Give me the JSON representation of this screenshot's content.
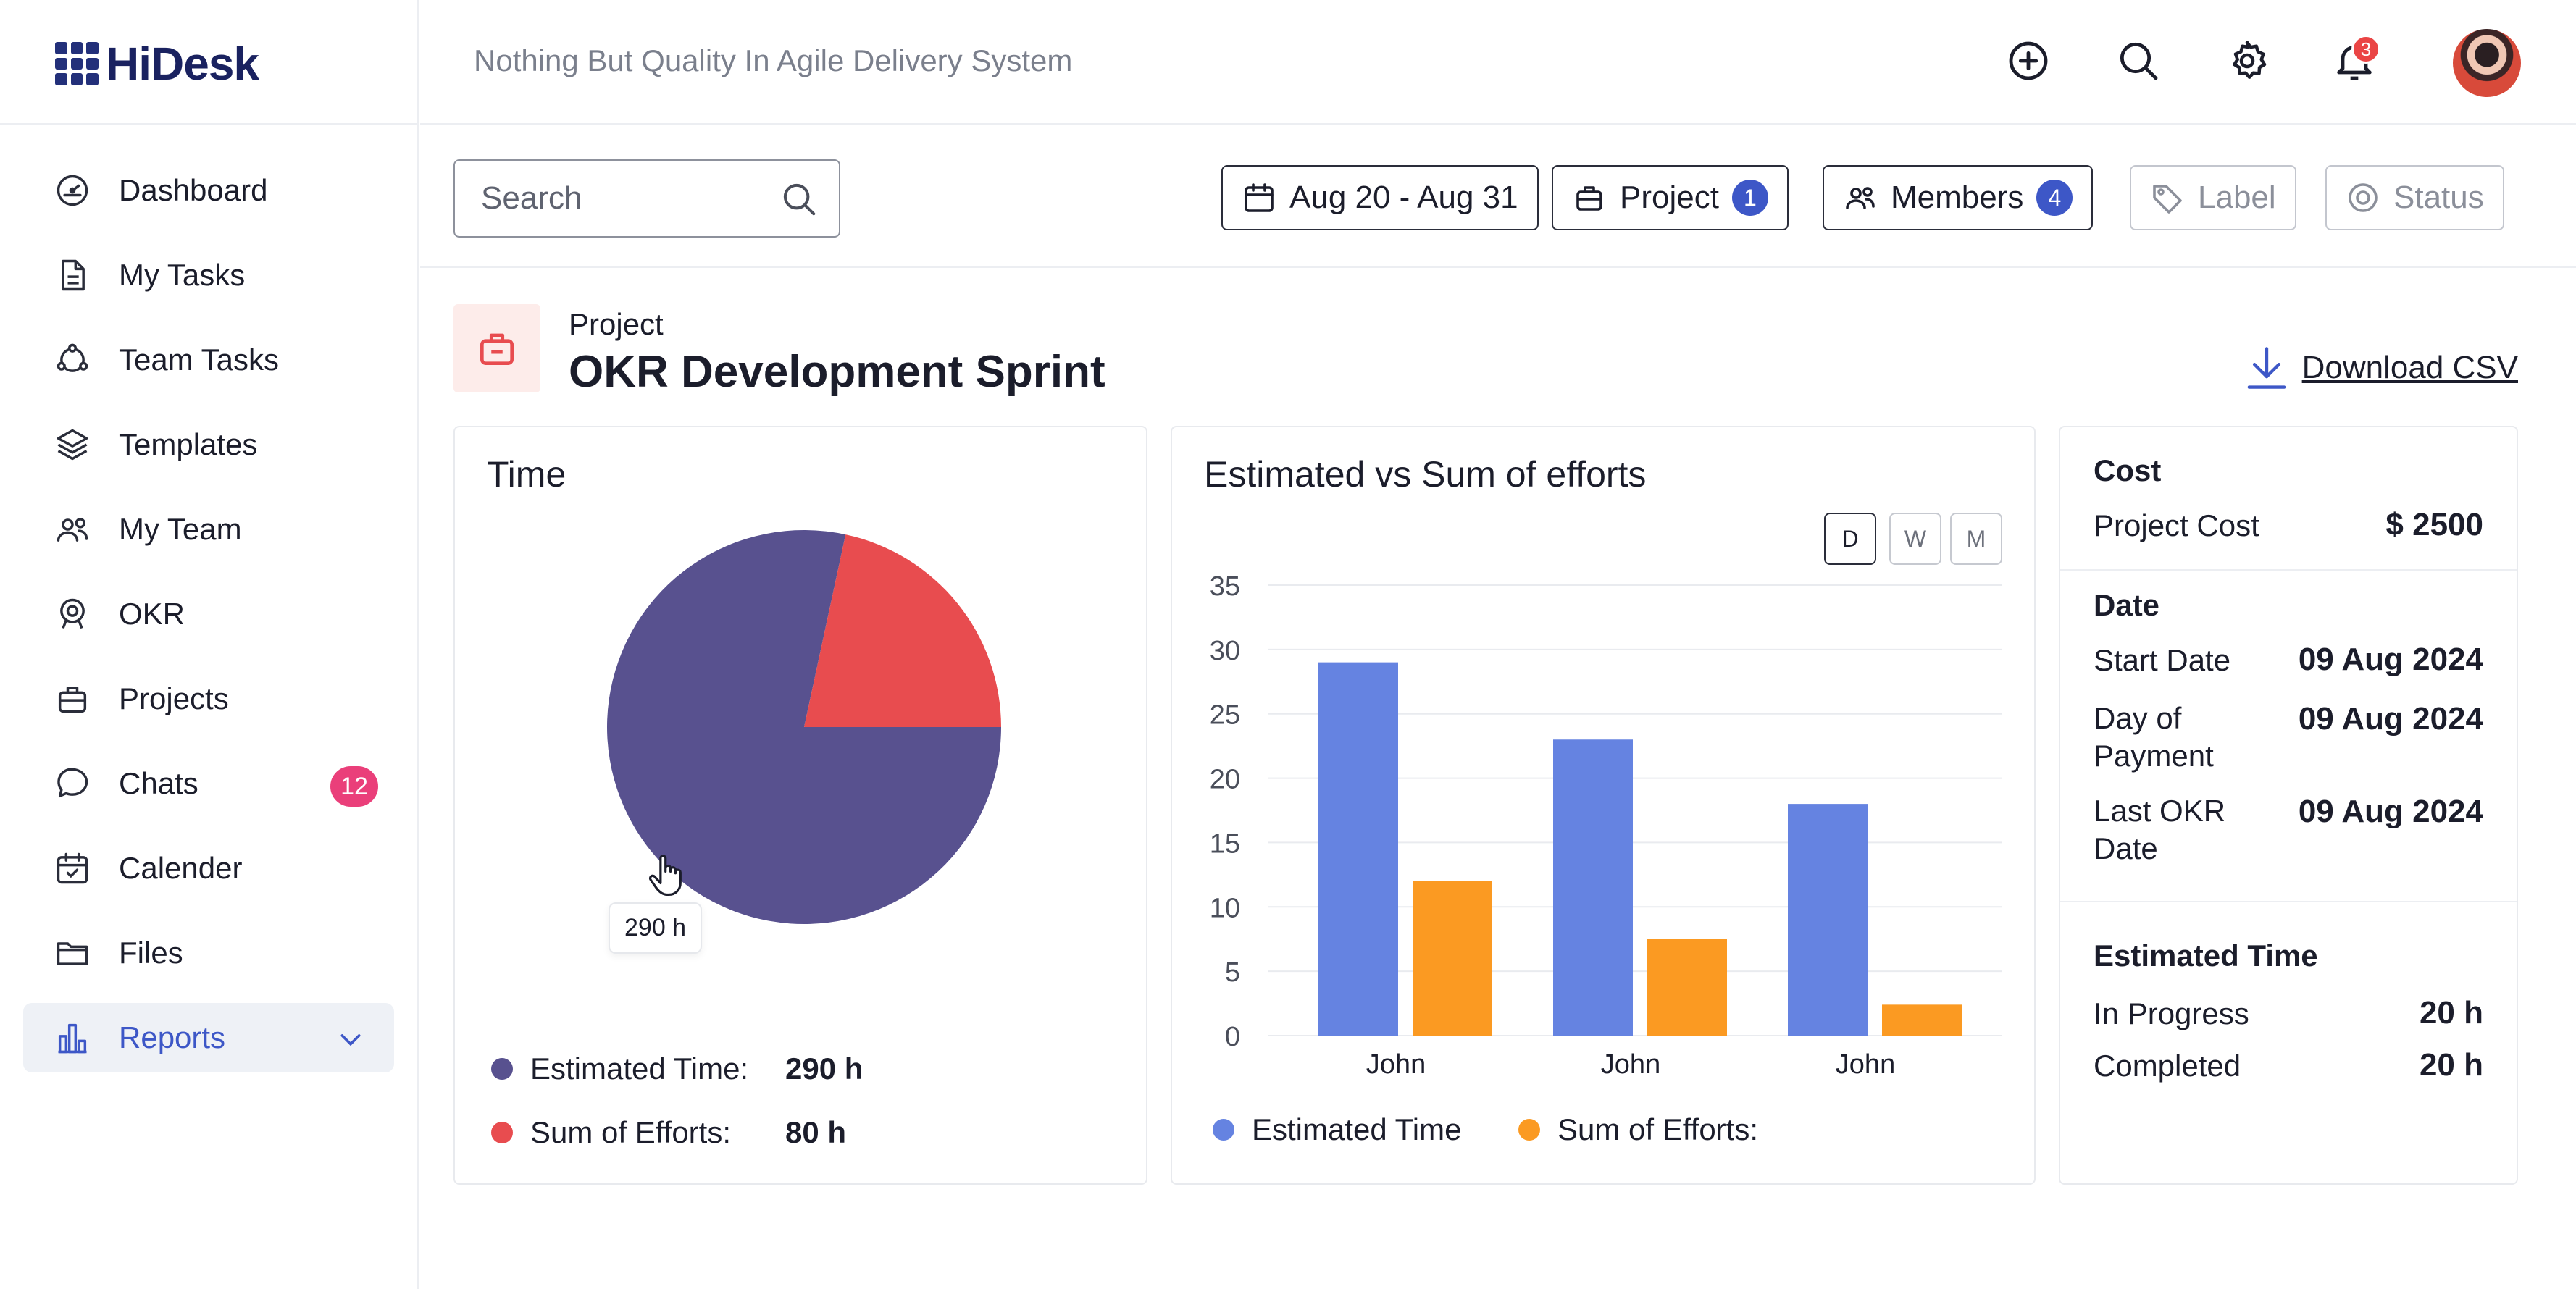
{
  "app": {
    "name": "HiDesk",
    "tagline": "Nothing But Quality In Agile Delivery System"
  },
  "sidebar": {
    "items": [
      {
        "label": "Dashboard",
        "icon": "dashboard-icon"
      },
      {
        "label": "My Tasks",
        "icon": "document-icon"
      },
      {
        "label": "Team Tasks",
        "icon": "team-tasks-icon"
      },
      {
        "label": "Templates",
        "icon": "layers-icon"
      },
      {
        "label": "My Team",
        "icon": "users-icon"
      },
      {
        "label": "OKR",
        "icon": "target-icon"
      },
      {
        "label": "Projects",
        "icon": "briefcase-icon"
      },
      {
        "label": "Chats",
        "icon": "chat-icon",
        "badge": "12"
      },
      {
        "label": "Calender",
        "icon": "calendar-icon"
      },
      {
        "label": "Files",
        "icon": "folder-icon"
      },
      {
        "label": "Reports",
        "icon": "bar-chart-icon",
        "active": true
      }
    ]
  },
  "topbar": {
    "notifications": "3"
  },
  "filters": {
    "search_placeholder": "Search",
    "date_range": "Aug 20 - Aug 31",
    "project": {
      "label": "Project",
      "count": "1"
    },
    "members": {
      "label": "Members",
      "count": "4"
    },
    "label": "Label",
    "status": "Status"
  },
  "project": {
    "kicker": "Project",
    "title": "OKR Development Sprint",
    "download": "Download CSV"
  },
  "time_card": {
    "title": "Time",
    "tooltip": "290 h",
    "legend": [
      {
        "label": "Estimated Time:",
        "value": "290 h",
        "color": "#58518f"
      },
      {
        "label": "Sum of Efforts:",
        "value": "80 h",
        "color": "#e84c4f"
      }
    ]
  },
  "effort_card": {
    "title": "Estimated vs Sum of efforts",
    "periods": [
      "D",
      "W",
      "M"
    ],
    "selected_period": "D",
    "legend": [
      {
        "label": "Estimated Time",
        "color": "#6583e1"
      },
      {
        "label": "Sum of Efforts:",
        "color": "#fb9a22"
      }
    ]
  },
  "info_card": {
    "cost_title": "Cost",
    "project_cost_label": "Project Cost",
    "project_cost_value": "$ 2500",
    "date_title": "Date",
    "start_date_label": "Start Date",
    "start_date_value": "09 Aug 2024",
    "payment_label": "Day of Payment",
    "payment_value": "09 Aug 2024",
    "last_okr_label": "Last OKR Date",
    "last_okr_value": "09 Aug 2024",
    "estimated_title": "Estimated Time",
    "in_progress_label": "In Progress",
    "in_progress_value": "20 h",
    "completed_label": "Completed",
    "completed_value": "20 h"
  },
  "chart_data": [
    {
      "type": "pie",
      "title": "Time",
      "labels": [
        "Estimated Time",
        "Sum of Efforts"
      ],
      "values": [
        290,
        80
      ],
      "colors": [
        "#58518f",
        "#e84c4f"
      ],
      "legend": "bottom"
    },
    {
      "type": "bar",
      "title": "Estimated vs Sum of efforts",
      "categories": [
        "John",
        "John",
        "John"
      ],
      "series": [
        {
          "name": "Estimated Time",
          "values": [
            29,
            23,
            18
          ],
          "color": "#6583e1"
        },
        {
          "name": "Sum of Efforts:",
          "values": [
            12,
            7.5,
            2.4
          ],
          "color": "#fb9a22"
        }
      ],
      "yticks": [
        "0",
        "5",
        "10",
        "15",
        "20",
        "25",
        "30",
        "35"
      ],
      "ylim": [
        0,
        35
      ],
      "grid": true,
      "legend": "bottom-left"
    }
  ]
}
